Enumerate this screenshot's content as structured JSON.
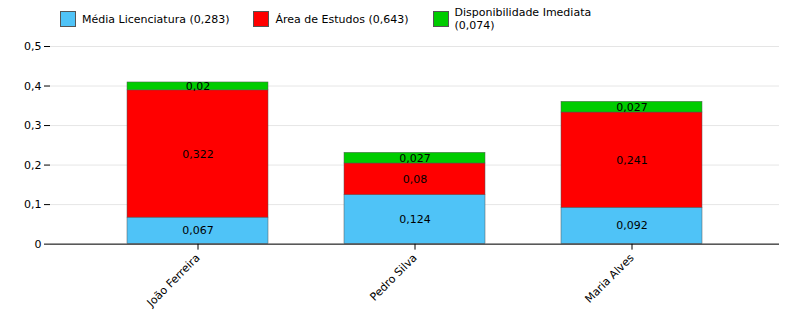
{
  "chart_data": {
    "type": "bar",
    "stacked": true,
    "data_labels": true,
    "grid": true,
    "categories": [
      "João Ferreira",
      "Pedro Silva",
      "Maria Alves"
    ],
    "series": [
      {
        "name": "Média Licenciatura (0,283)",
        "color": "#4FC3F7",
        "values": [
          0.067,
          0.124,
          0.092
        ],
        "value_labels": [
          "0,067",
          "0,124",
          "0,092"
        ]
      },
      {
        "name": "Área de Estudos (0,643)",
        "color": "#FF0000",
        "values": [
          0.322,
          0.08,
          0.241
        ],
        "value_labels": [
          "0,322",
          "0,08",
          "0,241"
        ]
      },
      {
        "name": "Disponibilidade Imediata\n(0,074)",
        "color": "#00CC00",
        "values": [
          0.02,
          0.027,
          0.027
        ],
        "value_labels": [
          "0,02",
          "0,027",
          "0,027"
        ]
      }
    ],
    "ylim": [
      0,
      0.5
    ],
    "yticks": [
      0,
      {
        "value": 0.1,
        "label": "0,1"
      },
      {
        "value": 0.2,
        "label": "0,2"
      },
      {
        "value": 0.3,
        "label": "0,3"
      },
      {
        "value": 0.4,
        "label": "0,4"
      },
      {
        "value": 0.5,
        "label": "0,5"
      }
    ]
  }
}
